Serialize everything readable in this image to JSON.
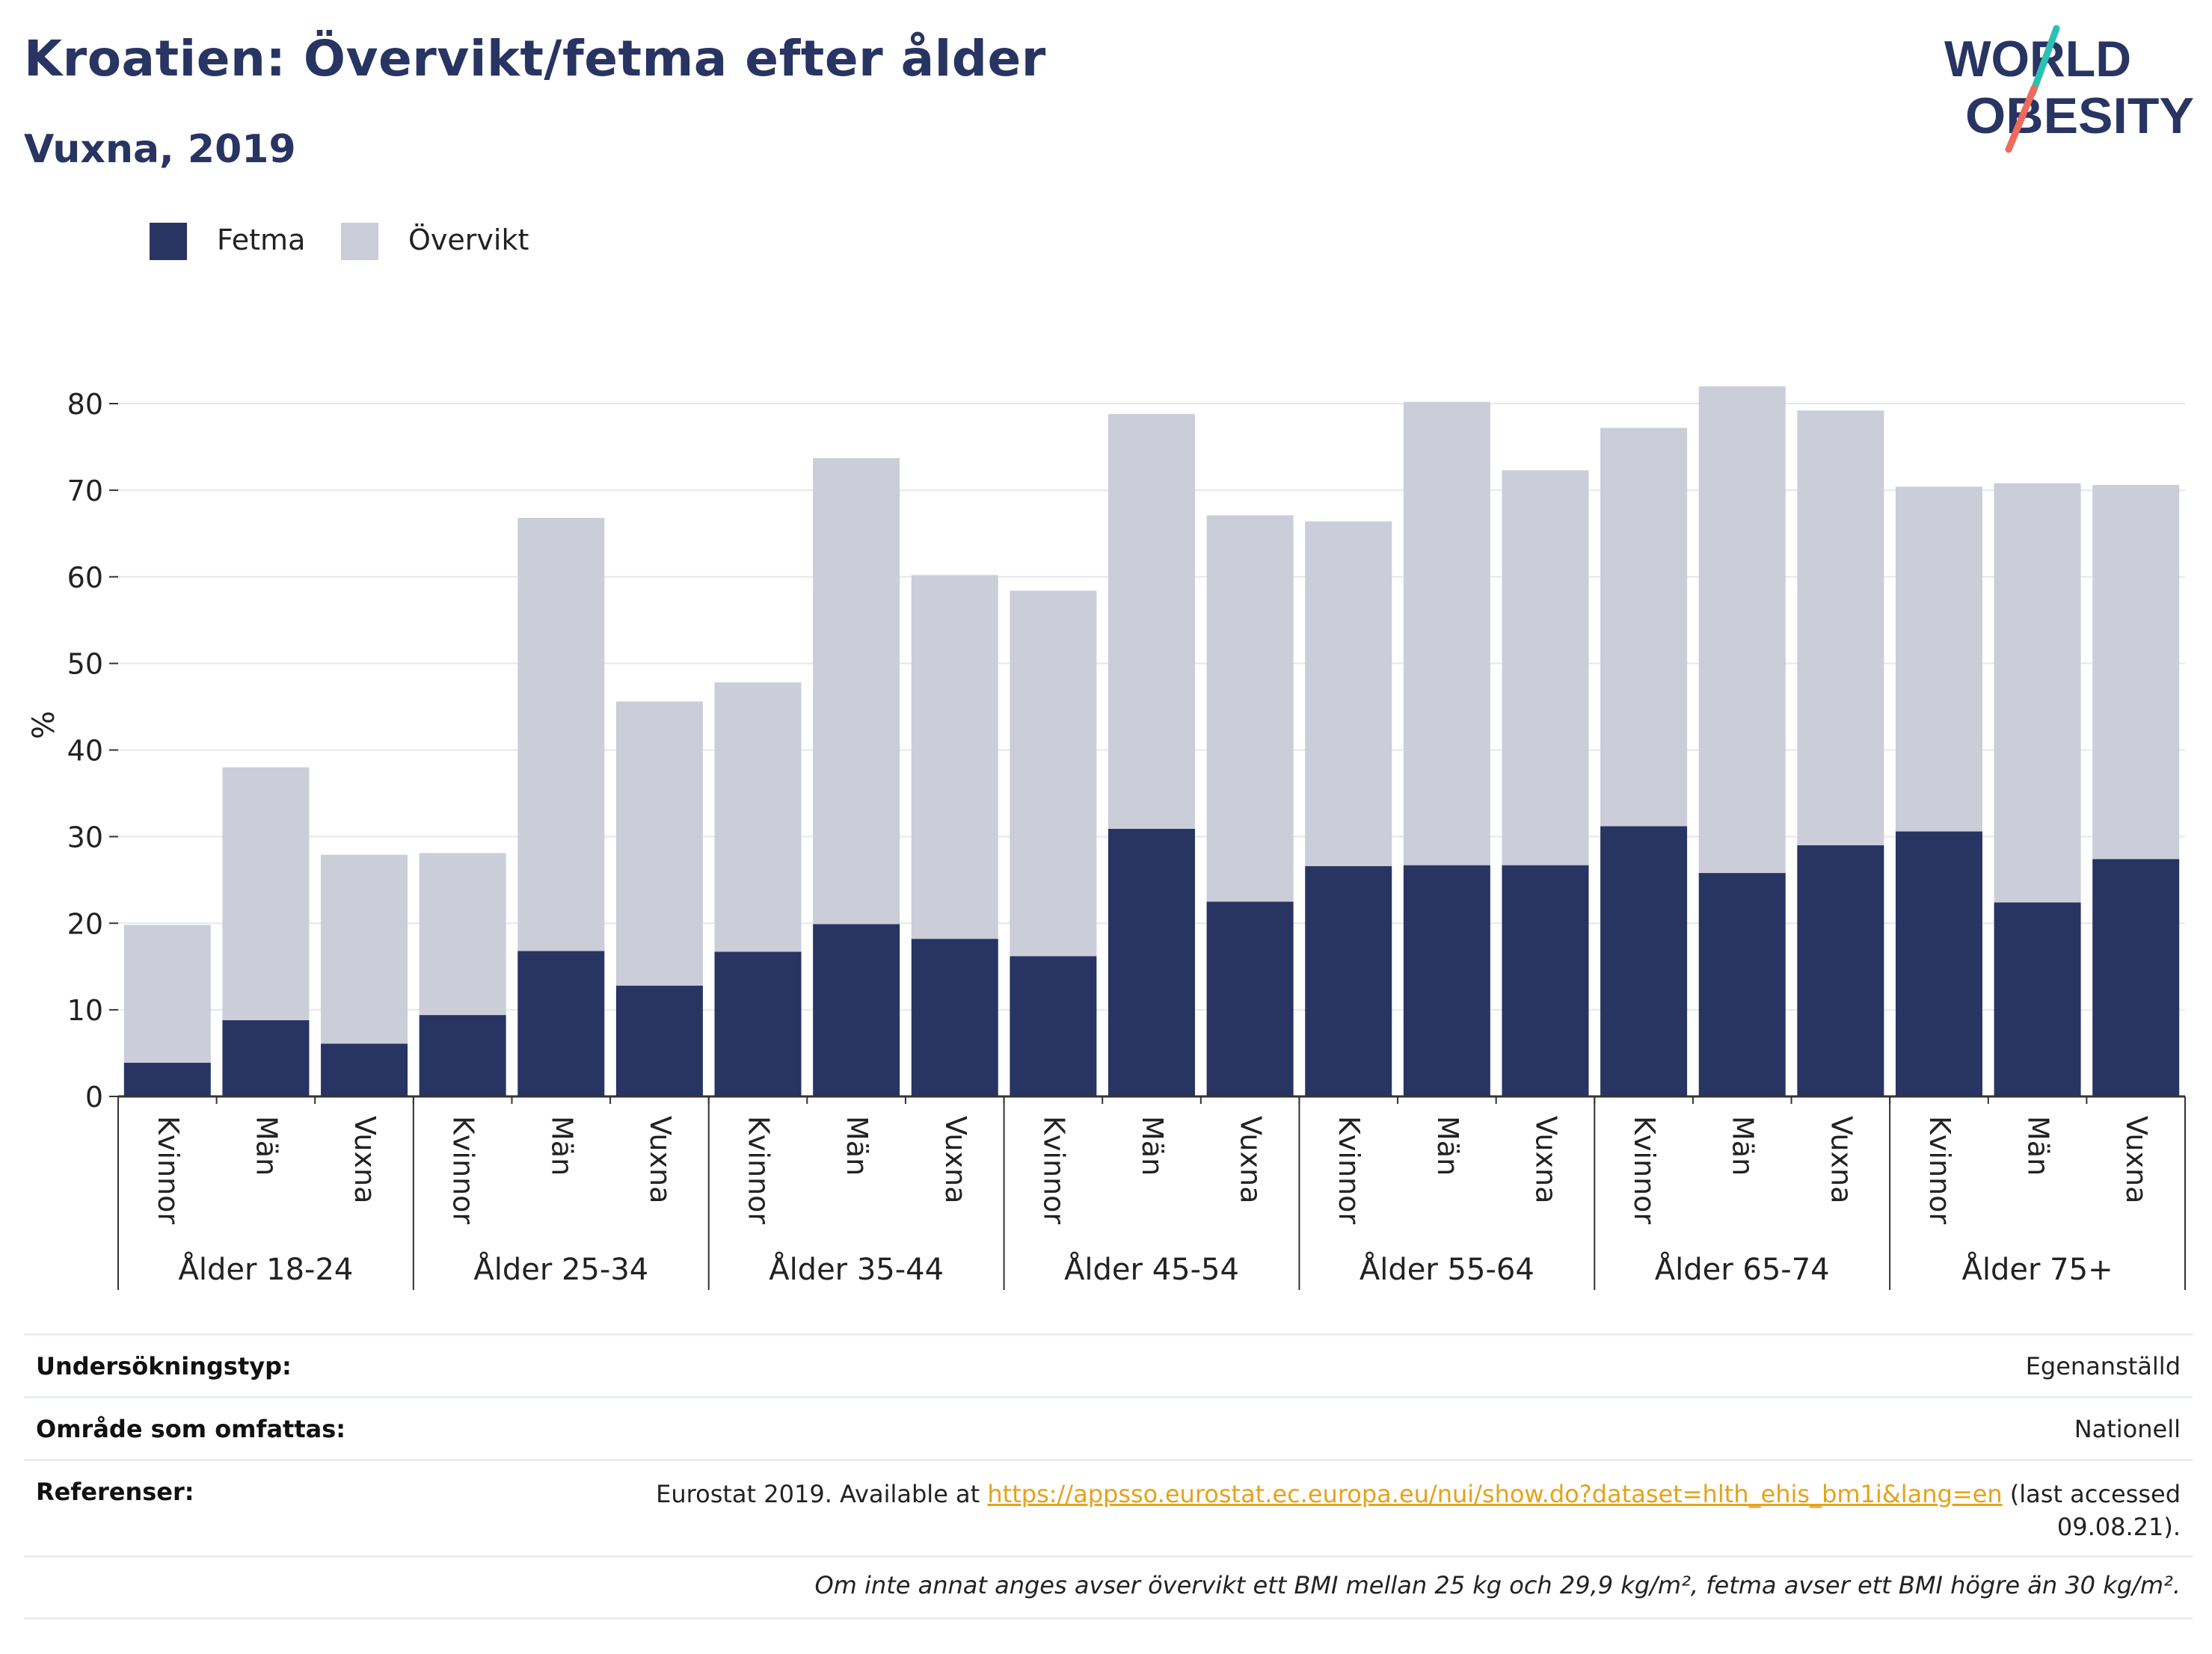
{
  "header": {
    "title": "Kroatien: Övervikt/fetma efter ålder",
    "subtitle": "Vuxna, 2019"
  },
  "logo": {
    "line1": "WORLD",
    "line2": "OBESITY"
  },
  "colors": {
    "fetma": "#283462",
    "overvikt": "#cbcdd8",
    "grid": "#e6e8ee",
    "axis": "#333333",
    "link": "#e6a21a",
    "logo_text": "#283462",
    "logo_slash_top": "#2cc0b3",
    "logo_slash_bottom": "#ee6a5c"
  },
  "legend": [
    {
      "label": "Fetma",
      "color": "#283462"
    },
    {
      "label": "Övervikt",
      "color": "#cbcdd8"
    }
  ],
  "chart_data": {
    "type": "bar",
    "stacked": true,
    "ylabel": "%",
    "ylim": [
      0,
      80
    ],
    "yticks": [
      0,
      10,
      20,
      30,
      40,
      50,
      60,
      70,
      80
    ],
    "grid": true,
    "legend_position": "top-left",
    "groups": [
      {
        "label": "Ålder 18-24",
        "categories": [
          "Kvinnor",
          "Män",
          "Vuxna"
        ]
      },
      {
        "label": "Ålder 25-34",
        "categories": [
          "Kvinnor",
          "Män",
          "Vuxna"
        ]
      },
      {
        "label": "Ålder 35-44",
        "categories": [
          "Kvinnor",
          "Män",
          "Vuxna"
        ]
      },
      {
        "label": "Ålder 45-54",
        "categories": [
          "Kvinnor",
          "Män",
          "Vuxna"
        ]
      },
      {
        "label": "Ålder 55-64",
        "categories": [
          "Kvinnor",
          "Män",
          "Vuxna"
        ]
      },
      {
        "label": "Ålder 65-74",
        "categories": [
          "Kvinnor",
          "Män",
          "Vuxna"
        ]
      },
      {
        "label": "Ålder 75+",
        "categories": [
          "Kvinnor",
          "Män",
          "Vuxna"
        ]
      }
    ],
    "series": [
      {
        "name": "Fetma",
        "values": [
          3.9,
          8.8,
          6.1,
          9.4,
          16.8,
          12.8,
          16.7,
          19.9,
          18.2,
          16.2,
          30.9,
          22.5,
          26.6,
          26.7,
          26.7,
          31.2,
          25.8,
          29.0,
          30.6,
          22.4,
          27.4
        ]
      },
      {
        "name": "Övervikt",
        "values": [
          15.9,
          29.2,
          21.8,
          18.7,
          50.0,
          32.8,
          31.1,
          53.8,
          42.0,
          42.2,
          47.9,
          44.6,
          39.8,
          53.5,
          45.6,
          46.0,
          56.2,
          50.2,
          39.8,
          48.4,
          43.2
        ]
      }
    ]
  },
  "info": {
    "survey_type_label": "Undersökningstyp:",
    "survey_type_value": "Egenanställd",
    "coverage_label": "Område som omfattas:",
    "coverage_value": "Nationell",
    "references_label": "Referenser:",
    "references_prefix": "Eurostat 2019. Available at",
    "references_link": "https://appsso.eurostat.ec.europa.eu/nui/show.do?dataset=hlth_ehis_bm1i&lang=en",
    "references_suffix": "(last accessed",
    "references_date": "09.08.21).",
    "footnote": "Om inte annat anges avser övervikt ett BMI mellan 25 kg och 29,9 kg/m², fetma avser ett BMI högre än 30 kg/m²."
  }
}
